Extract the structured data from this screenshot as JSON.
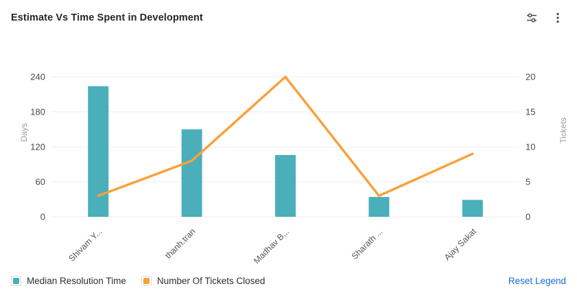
{
  "header": {
    "title": "Estimate Vs Time Spent in Development",
    "actions": [
      {
        "icon": "sliders-icon"
      },
      {
        "icon": "kebab-menu-icon"
      }
    ]
  },
  "chart_data": {
    "type": "combo-bar-line",
    "title": "Estimate Vs Time Spent in Development",
    "categories": [
      "Shivam Y...",
      "thanh.tran",
      "Madhav B...",
      "Sharath ...",
      "Ajay Sakat"
    ],
    "series": [
      {
        "name": "Median Resolution Time",
        "type": "bar",
        "axis": "left",
        "color": "#4aafba",
        "values": [
          224,
          150,
          106,
          34,
          29
        ]
      },
      {
        "name": "Number Of Tickets Closed",
        "type": "line",
        "axis": "right",
        "color": "#f9a13c",
        "values": [
          3,
          8,
          20,
          3,
          9
        ]
      }
    ],
    "left_axis": {
      "label": "Days",
      "ticks": [
        0,
        60,
        120,
        180,
        240
      ],
      "min": 0,
      "max": 240
    },
    "right_axis": {
      "label": "Tickets",
      "ticks": [
        0,
        5,
        10,
        15,
        20
      ],
      "min": 0,
      "max": 20
    },
    "grid": true,
    "legend_position": "bottom"
  },
  "legend": {
    "items": [
      {
        "label": "Median Resolution Time",
        "color": "#4aafba"
      },
      {
        "label": "Number Of Tickets Closed",
        "color": "#f9a13c"
      }
    ],
    "reset_label": "Reset Legend"
  },
  "colors": {
    "bar": "#4aafba",
    "line": "#f9a13c",
    "link": "#1868db",
    "grid_line": "#ececee",
    "tick_text": "#45484d",
    "axis_title_text": "#9a9da2",
    "category_text": "#54575c",
    "title_text": "#24262b",
    "icon": "#44474f"
  }
}
